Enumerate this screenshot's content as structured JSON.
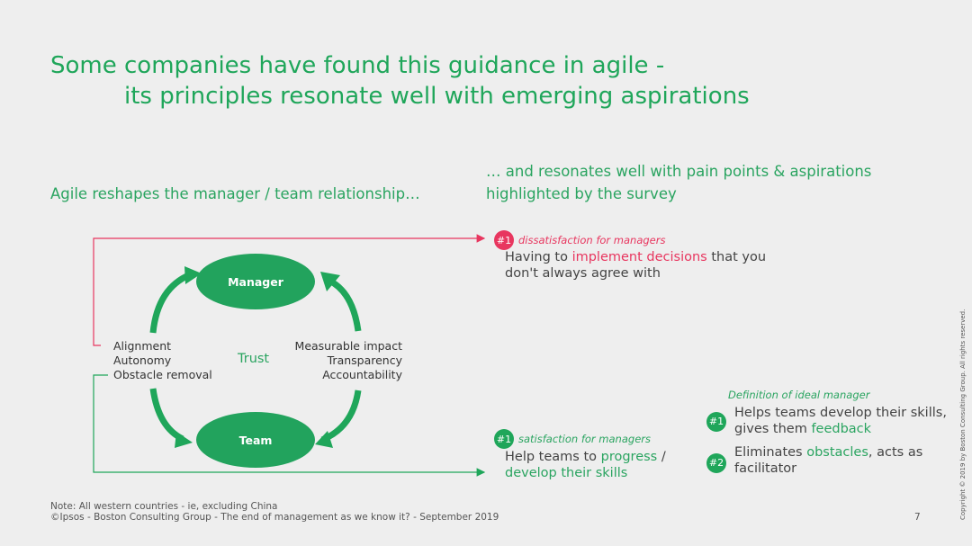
{
  "title": {
    "line1": "Some companies have found this guidance in agile -",
    "line2": "its principles resonate well with emerging aspirations"
  },
  "left_header": "Agile reshapes the manager / team relationship…",
  "right_header": {
    "line1": "… and resonates well with pain points & aspirations",
    "line2": "highlighted by the survey"
  },
  "diagram": {
    "manager": "Manager",
    "team": "Team",
    "trust": "Trust",
    "left_items": [
      "Alignment",
      "Autonomy",
      "Obstacle removal"
    ],
    "right_items": [
      "Measurable impact",
      "Transparency",
      "Accountability"
    ]
  },
  "dissatisfaction": {
    "badge": "#1",
    "label": "dissatisfaction for managers",
    "text_pre": "Having to ",
    "text_hl": "implement decisions",
    "text_post": " that you",
    "text_line2": "don't always agree with"
  },
  "satisfaction": {
    "badge": "#1",
    "label": "satisfaction for managers",
    "text_pre": "Help teams to ",
    "text_hl": "progress",
    "text_post": " /",
    "text_line2": "develop their skills"
  },
  "ideal_manager": {
    "label": "Definition of ideal manager",
    "items": [
      {
        "badge": "#1",
        "line1": "Helps teams develop their skills,",
        "line2_pre": "gives them ",
        "line2_hl": "feedback"
      },
      {
        "badge": "#2",
        "line1_pre": "Eliminates ",
        "line1_hl": "obstacles",
        "line1_post": ", acts as",
        "line2": "facilitator"
      }
    ]
  },
  "footer": {
    "note": "Note: All western countries - ie, excluding China",
    "source": "©Ipsos - Boston Consulting Group - The end of management as we know it? - September 2019",
    "page": "7"
  },
  "copyright": "Copyright © 2019 by Boston Consulting Group. All rights reserved.",
  "colors": {
    "green": "#1fa65a",
    "red": "#e8365f"
  }
}
